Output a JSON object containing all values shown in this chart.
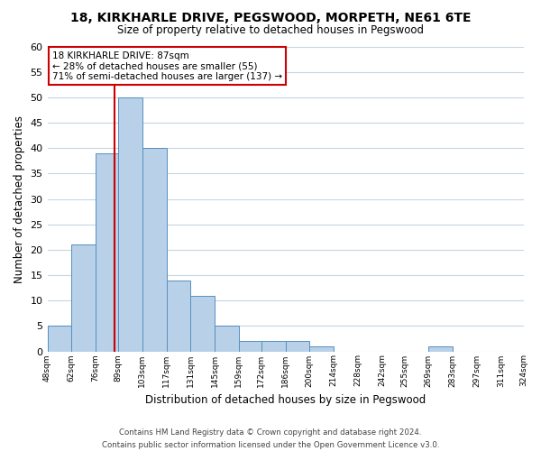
{
  "title": "18, KIRKHARLE DRIVE, PEGSWOOD, MORPETH, NE61 6TE",
  "subtitle": "Size of property relative to detached houses in Pegswood",
  "xlabel": "Distribution of detached houses by size in Pegswood",
  "ylabel": "Number of detached properties",
  "bin_edges": [
    48,
    62,
    76,
    89,
    103,
    117,
    131,
    145,
    159,
    172,
    186,
    200,
    214,
    228,
    242,
    255,
    269,
    283,
    297,
    311,
    324
  ],
  "bin_labels": [
    "48sqm",
    "62sqm",
    "76sqm",
    "89sqm",
    "103sqm",
    "117sqm",
    "131sqm",
    "145sqm",
    "159sqm",
    "172sqm",
    "186sqm",
    "200sqm",
    "214sqm",
    "228sqm",
    "242sqm",
    "255sqm",
    "269sqm",
    "283sqm",
    "297sqm",
    "311sqm",
    "324sqm"
  ],
  "bar_heights": [
    5,
    21,
    39,
    50,
    40,
    14,
    11,
    5,
    2,
    2,
    2,
    1,
    0,
    0,
    0,
    0,
    1,
    0,
    0,
    0
  ],
  "bar_color": "#b8d0e8",
  "bar_edge_color": "#5590c0",
  "property_line_x": 87,
  "property_line_color": "#cc0000",
  "ylim": [
    0,
    60
  ],
  "yticks": [
    0,
    5,
    10,
    15,
    20,
    25,
    30,
    35,
    40,
    45,
    50,
    55,
    60
  ],
  "annotation_title": "18 KIRKHARLE DRIVE: 87sqm",
  "annotation_line1": "← 28% of detached houses are smaller (55)",
  "annotation_line2": "71% of semi-detached houses are larger (137) →",
  "annotation_box_color": "#ffffff",
  "annotation_box_edge": "#cc0000",
  "footer_line1": "Contains HM Land Registry data © Crown copyright and database right 2024.",
  "footer_line2": "Contains public sector information licensed under the Open Government Licence v3.0.",
  "background_color": "#ffffff",
  "grid_color": "#c8d4e0"
}
